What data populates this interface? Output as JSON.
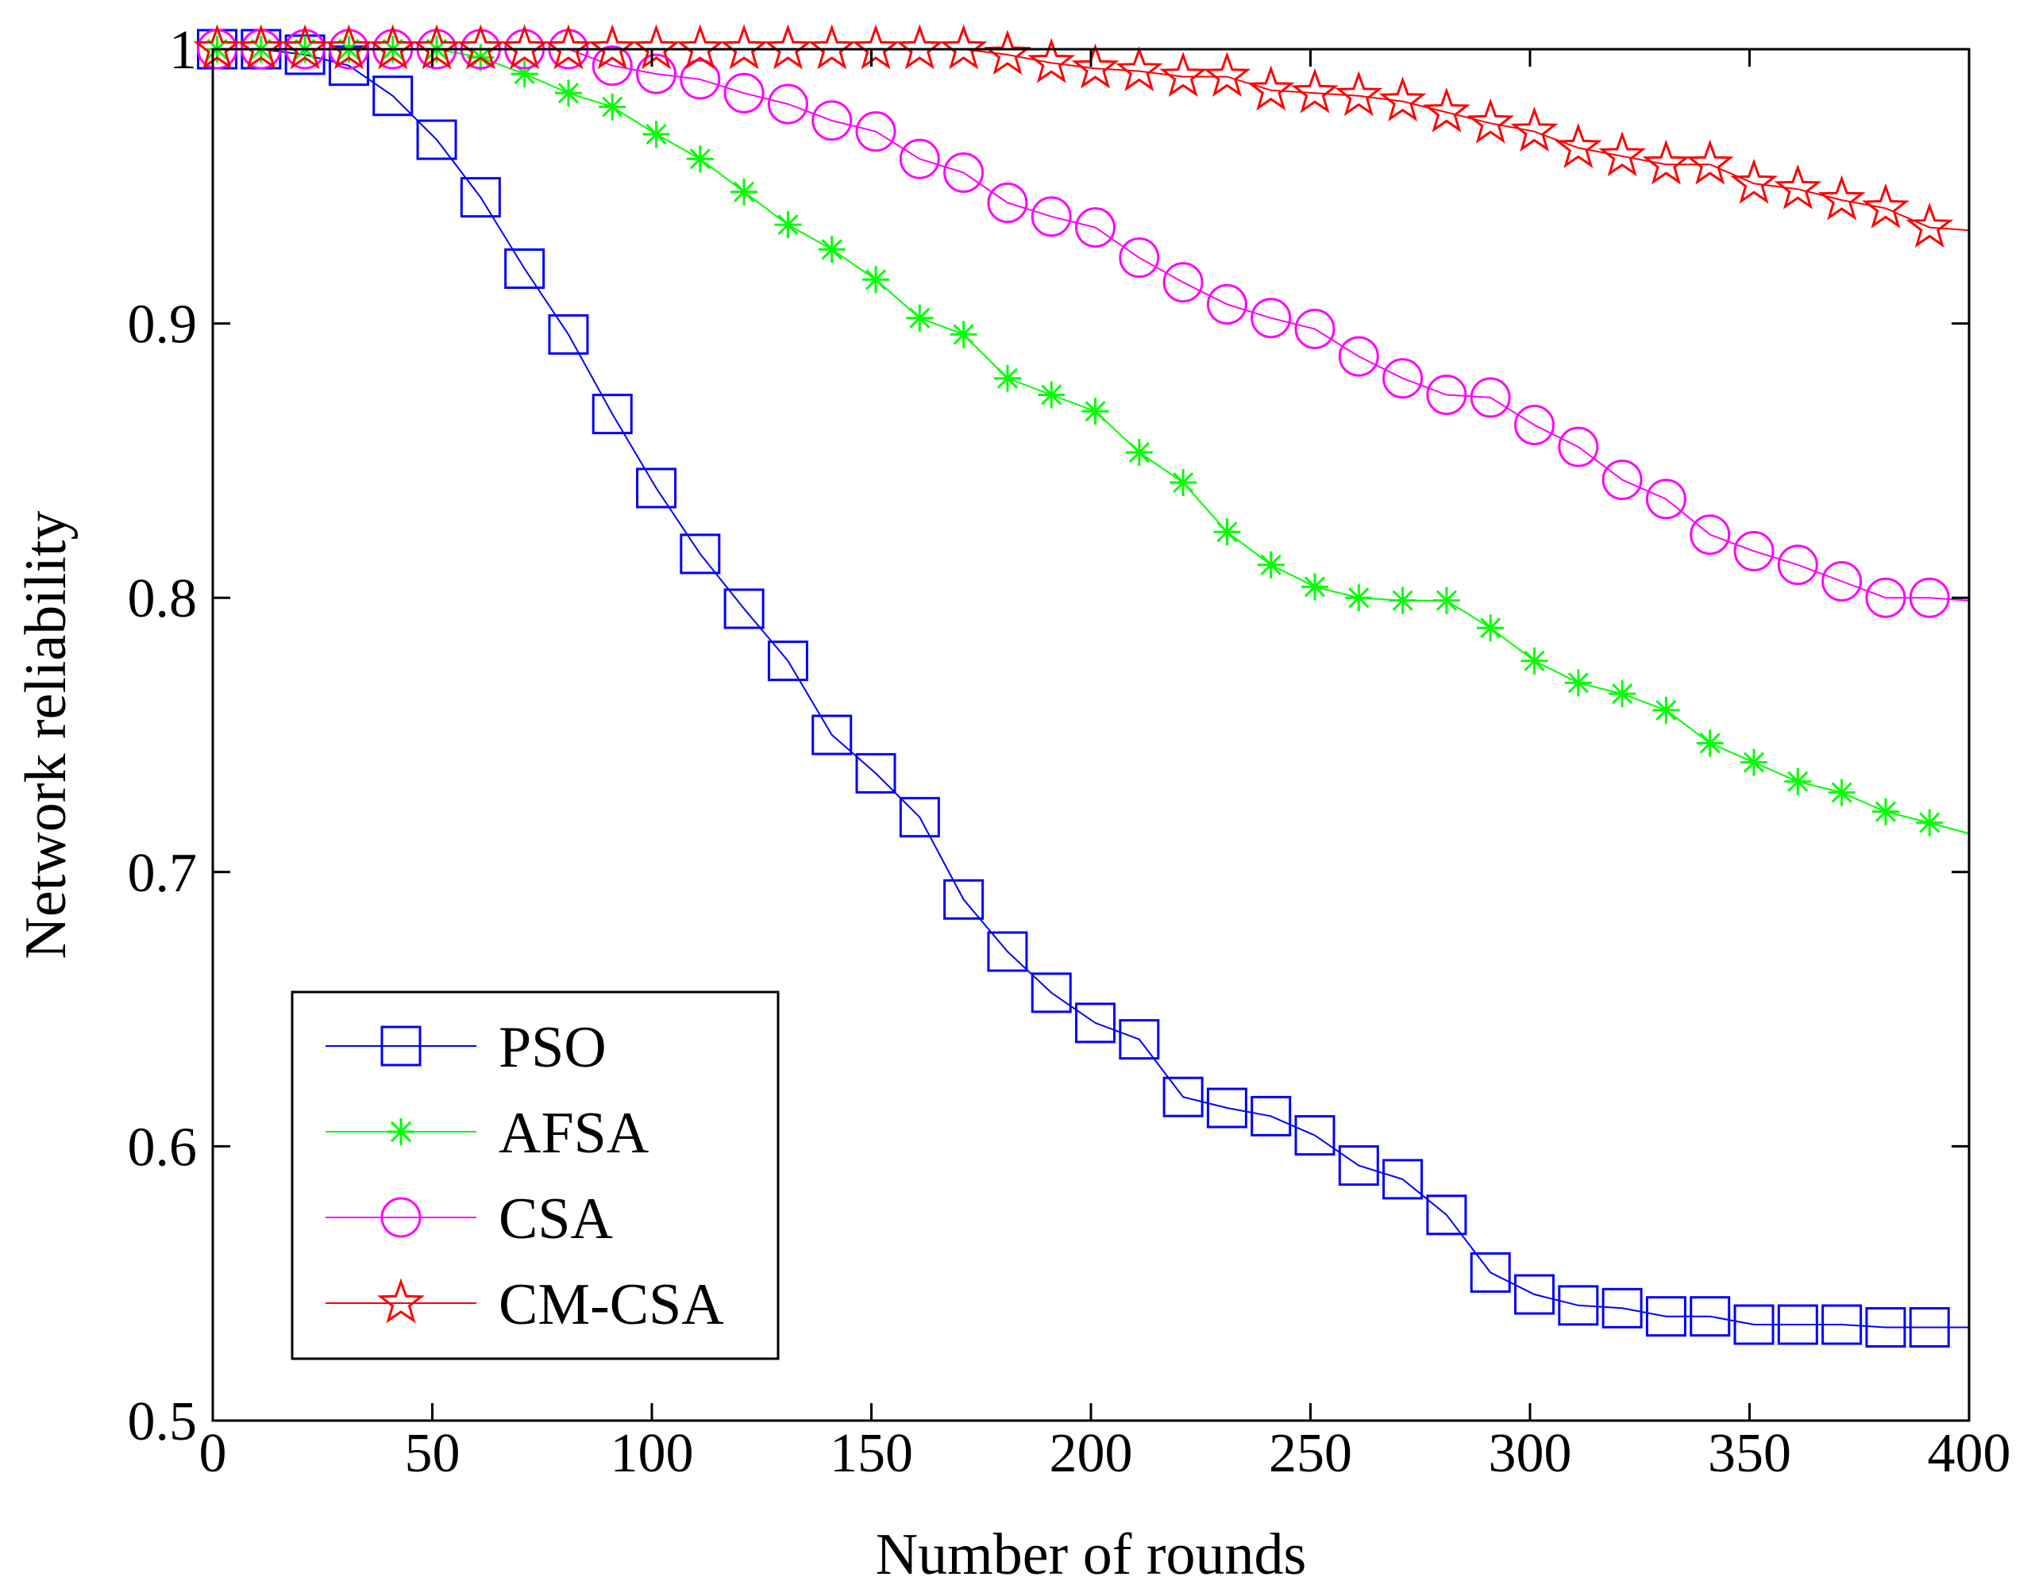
{
  "chart_data": {
    "type": "line",
    "title": "",
    "xlabel": "Number of rounds",
    "ylabel": "Network reliability",
    "xlim": [
      0,
      400
    ],
    "ylim": [
      0.5,
      1
    ],
    "xticks": [
      0,
      50,
      100,
      150,
      200,
      250,
      300,
      350,
      400
    ],
    "xtick_labels": [
      "0",
      "50",
      "100",
      "150",
      "200",
      "250",
      "300",
      "350",
      "400"
    ],
    "yticks": [
      0.5,
      0.6,
      0.7,
      0.8,
      0.9,
      1
    ],
    "ytick_labels": [
      "0.5",
      "0.6",
      "0.7",
      "0.8",
      "0.9",
      "1"
    ],
    "grid": false,
    "legend_position": "bottom-left",
    "x": [
      1,
      11,
      21,
      31,
      41,
      51,
      61,
      71,
      81,
      91,
      101,
      111,
      121,
      131,
      141,
      151,
      161,
      171,
      181,
      191,
      201,
      211,
      221,
      231,
      241,
      251,
      261,
      271,
      281,
      291,
      301,
      311,
      321,
      331,
      341,
      351,
      361,
      371,
      381,
      391,
      400
    ],
    "series": [
      {
        "name": "PSO",
        "color": "#0000ff",
        "marker": "square",
        "values": [
          1.0,
          1.0,
          0.998,
          0.994,
          0.983,
          0.967,
          0.946,
          0.92,
          0.896,
          0.867,
          0.84,
          0.816,
          0.796,
          0.777,
          0.75,
          0.736,
          0.72,
          0.69,
          0.671,
          0.656,
          0.645,
          0.639,
          0.618,
          0.614,
          0.611,
          0.604,
          0.593,
          0.588,
          0.575,
          0.554,
          0.546,
          0.542,
          0.541,
          0.538,
          0.538,
          0.535,
          0.535,
          0.535,
          0.534,
          0.534,
          0.534
        ]
      },
      {
        "name": "AFSA",
        "color": "#00ff00",
        "marker": "asterisk",
        "values": [
          1.0,
          1.0,
          1.0,
          1.0,
          1.0,
          1.0,
          0.997,
          0.991,
          0.984,
          0.979,
          0.969,
          0.96,
          0.948,
          0.936,
          0.927,
          0.916,
          0.902,
          0.896,
          0.88,
          0.874,
          0.868,
          0.853,
          0.842,
          0.824,
          0.812,
          0.804,
          0.8,
          0.799,
          0.799,
          0.789,
          0.777,
          0.769,
          0.765,
          0.759,
          0.747,
          0.74,
          0.733,
          0.729,
          0.722,
          0.718,
          0.714
        ]
      },
      {
        "name": "CSA",
        "color": "#ff00ff",
        "marker": "circle",
        "values": [
          1.0,
          1.0,
          1.0,
          1.0,
          1.0,
          1.0,
          1.0,
          1.0,
          1.0,
          0.994,
          0.991,
          0.989,
          0.984,
          0.98,
          0.974,
          0.97,
          0.96,
          0.955,
          0.944,
          0.939,
          0.935,
          0.924,
          0.915,
          0.907,
          0.902,
          0.898,
          0.888,
          0.88,
          0.874,
          0.873,
          0.863,
          0.855,
          0.843,
          0.836,
          0.823,
          0.817,
          0.812,
          0.806,
          0.8,
          0.8,
          0.799
        ]
      },
      {
        "name": "CM-CSA",
        "color": "#ff0000",
        "marker": "star",
        "values": [
          1.0,
          1.0,
          1.0,
          1.0,
          1.0,
          1.0,
          1.0,
          1.0,
          1.0,
          1.0,
          1.0,
          1.0,
          1.0,
          1.0,
          1.0,
          1.0,
          1.0,
          1.0,
          0.998,
          0.995,
          0.993,
          0.992,
          0.99,
          0.99,
          0.985,
          0.984,
          0.983,
          0.981,
          0.977,
          0.973,
          0.97,
          0.964,
          0.961,
          0.958,
          0.958,
          0.951,
          0.949,
          0.945,
          0.942,
          0.935,
          0.934
        ]
      }
    ]
  }
}
